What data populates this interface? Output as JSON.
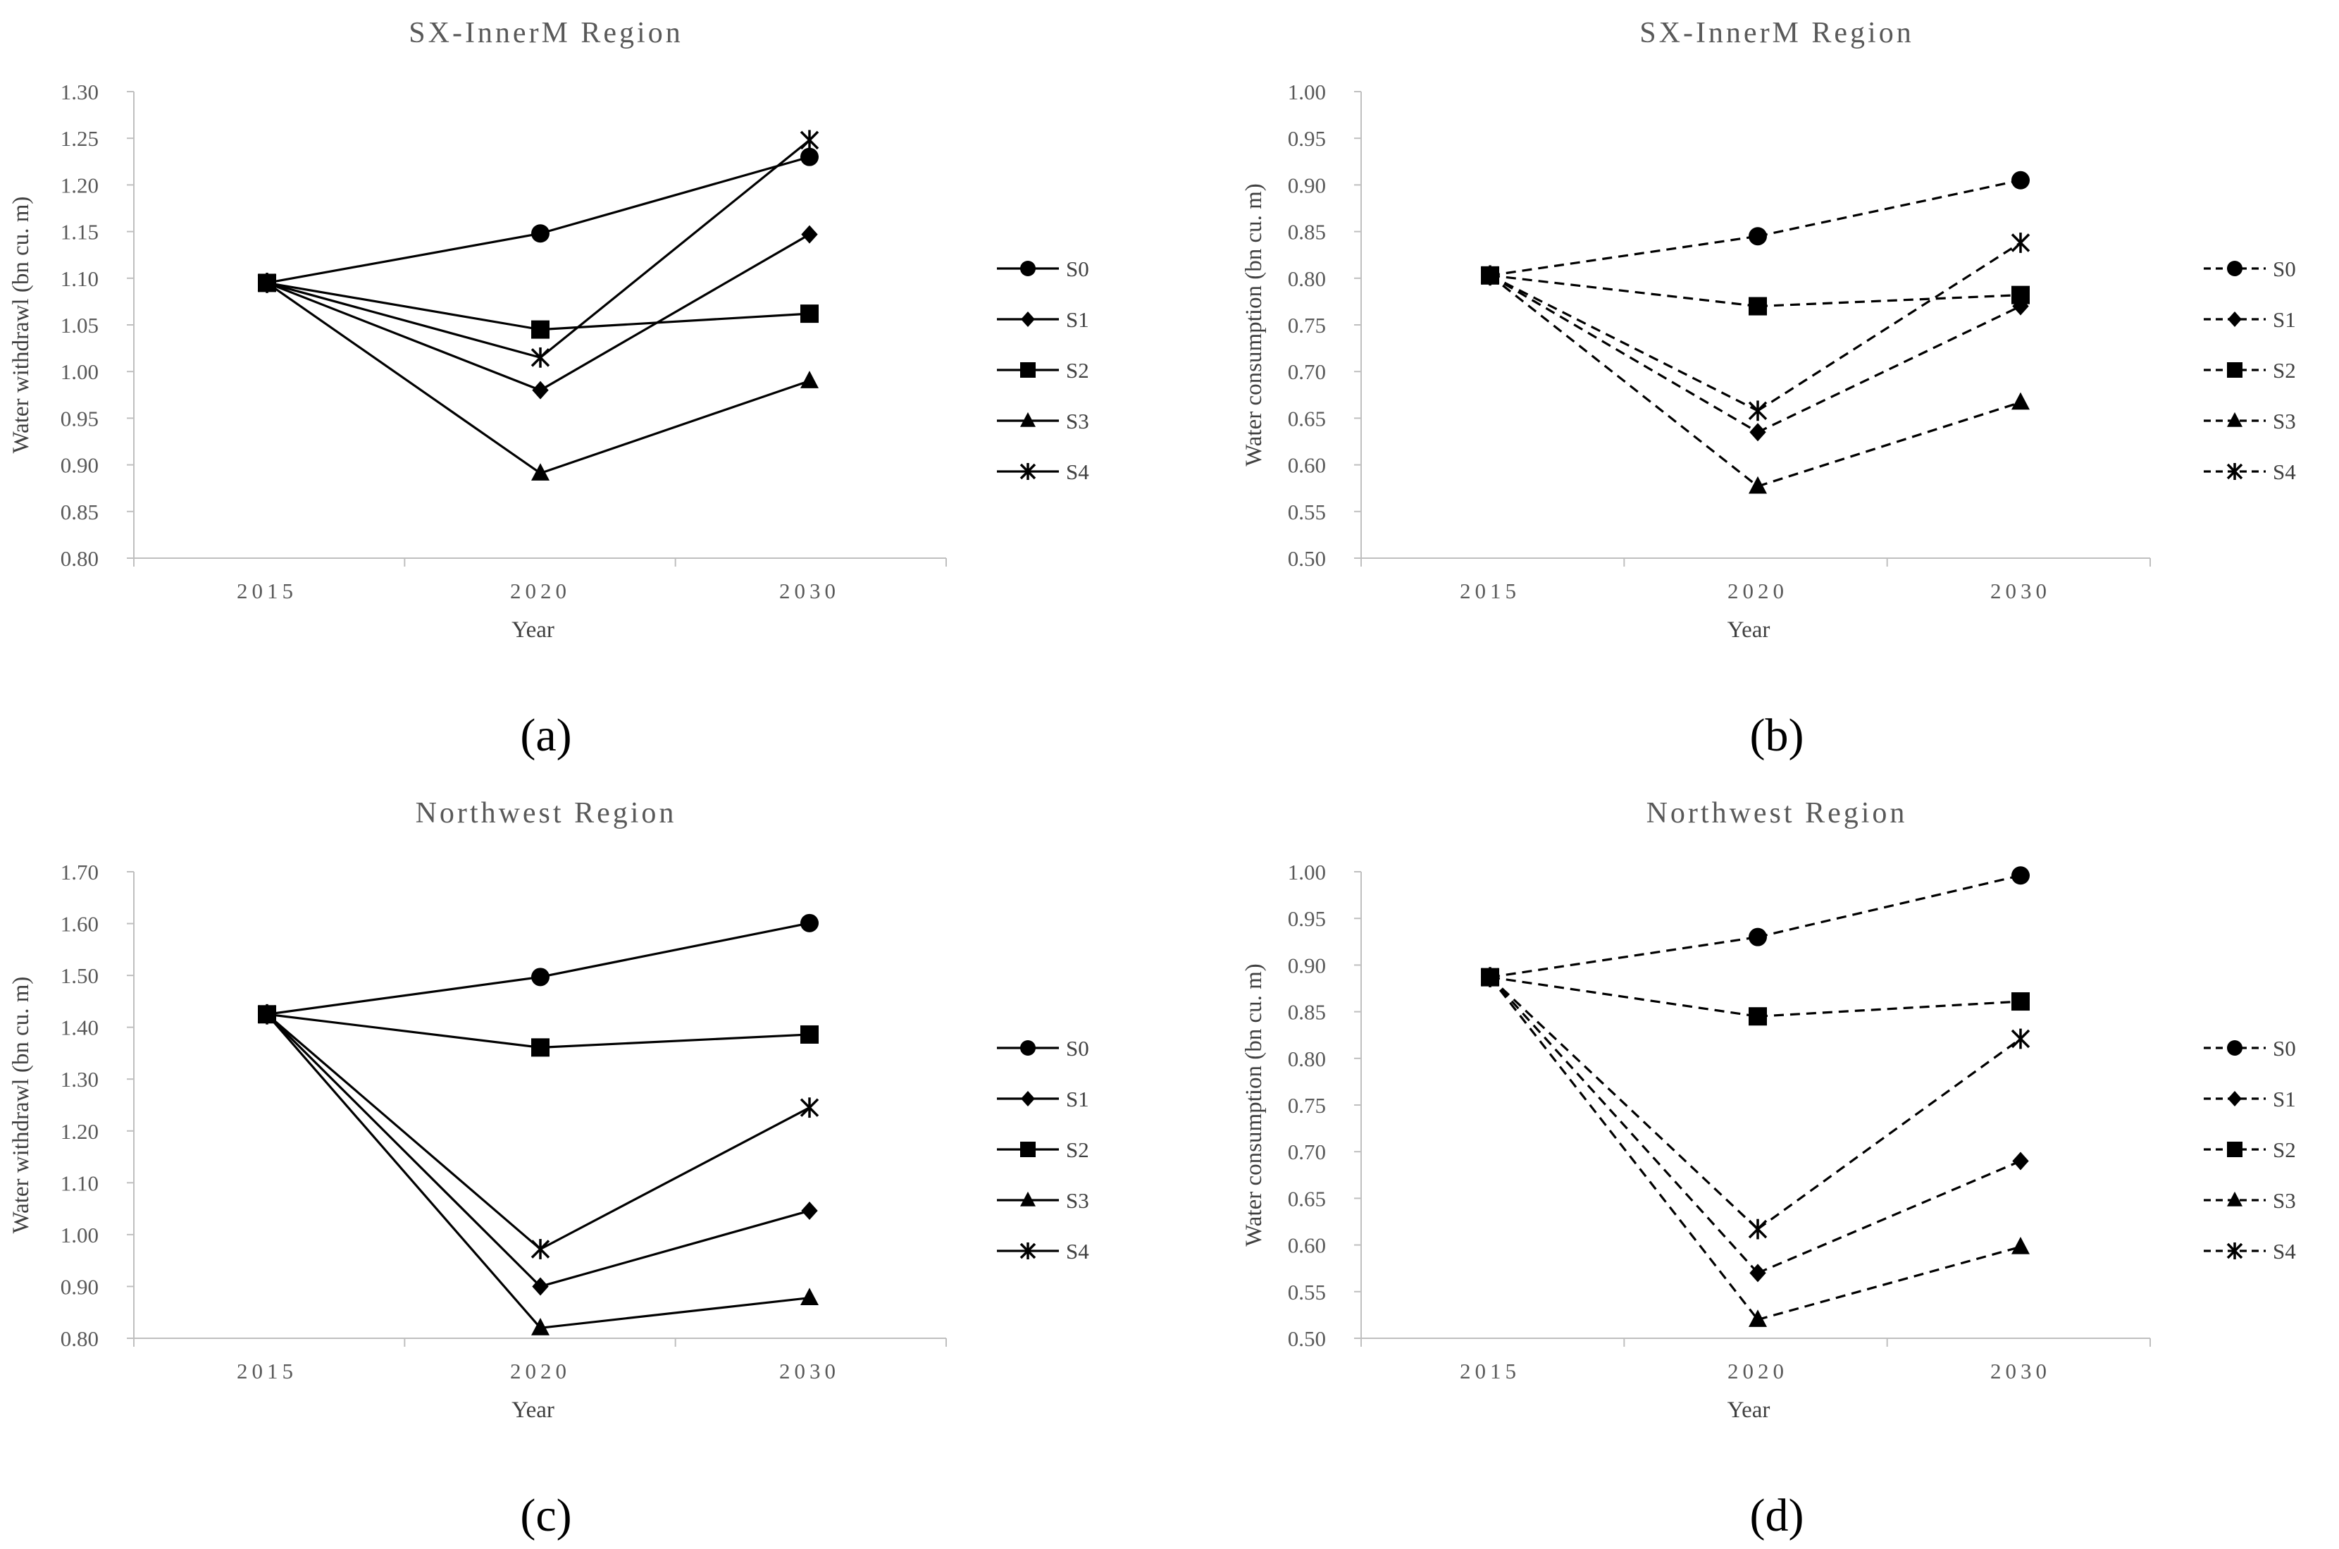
{
  "chart_data": [
    {
      "type": "line",
      "panel_label": "(a)",
      "title": "SX-InnerM Region",
      "xlabel": "Year",
      "ylabel": "Water withdrawl  (bn cu. m)",
      "line_style": "solid",
      "categories": [
        "2015",
        "2020",
        "2030"
      ],
      "ylim": [
        0.8,
        1.3
      ],
      "ystep": 0.05,
      "ytick_labels": [
        "0.80",
        "0.85",
        "0.90",
        "0.95",
        "1.00",
        "1.05",
        "1.10",
        "1.15",
        "1.20",
        "1.25",
        "1.30"
      ],
      "series": [
        {
          "name": "S0",
          "marker": "circle",
          "values": [
            1.095,
            1.148,
            1.23
          ]
        },
        {
          "name": "S1",
          "marker": "diamond",
          "values": [
            1.095,
            0.98,
            1.147
          ]
        },
        {
          "name": "S2",
          "marker": "square",
          "values": [
            1.095,
            1.045,
            1.062
          ]
        },
        {
          "name": "S3",
          "marker": "triangle",
          "values": [
            1.095,
            0.891,
            0.99
          ]
        },
        {
          "name": "S4",
          "marker": "star",
          "values": [
            1.095,
            1.015,
            1.248
          ]
        }
      ]
    },
    {
      "type": "line",
      "panel_label": "(b)",
      "title": "SX-InnerM Region",
      "xlabel": "Year",
      "ylabel": "Water consumption (bn cu. m)",
      "line_style": "dashed",
      "categories": [
        "2015",
        "2020",
        "2030"
      ],
      "ylim": [
        0.5,
        1.0
      ],
      "ystep": 0.05,
      "ytick_labels": [
        "0.50",
        "0.55",
        "0.60",
        "0.65",
        "0.70",
        "0.75",
        "0.80",
        "0.85",
        "0.90",
        "0.95",
        "1.00"
      ],
      "series": [
        {
          "name": "S0",
          "marker": "circle",
          "values": [
            0.803,
            0.845,
            0.905
          ]
        },
        {
          "name": "S1",
          "marker": "diamond",
          "values": [
            0.803,
            0.635,
            0.77
          ]
        },
        {
          "name": "S2",
          "marker": "square",
          "values": [
            0.803,
            0.77,
            0.782
          ]
        },
        {
          "name": "S3",
          "marker": "triangle",
          "values": [
            0.803,
            0.577,
            0.667
          ]
        },
        {
          "name": "S4",
          "marker": "star",
          "values": [
            0.803,
            0.658,
            0.838
          ]
        }
      ]
    },
    {
      "type": "line",
      "panel_label": "(c)",
      "title": "Northwest Region",
      "xlabel": "Year",
      "ylabel": "Water withdrawl  (bn cu. m)",
      "line_style": "solid",
      "categories": [
        "2015",
        "2020",
        "2030"
      ],
      "ylim": [
        0.8,
        1.7
      ],
      "ystep": 0.1,
      "ytick_labels": [
        "0.80",
        "0.90",
        "1.00",
        "1.10",
        "1.20",
        "1.30",
        "1.40",
        "1.50",
        "1.60",
        "1.70"
      ],
      "series": [
        {
          "name": "S0",
          "marker": "circle",
          "values": [
            1.425,
            1.497,
            1.601
          ]
        },
        {
          "name": "S1",
          "marker": "diamond",
          "values": [
            1.425,
            0.9,
            1.046
          ]
        },
        {
          "name": "S2",
          "marker": "square",
          "values": [
            1.425,
            1.361,
            1.386
          ]
        },
        {
          "name": "S3",
          "marker": "triangle",
          "values": [
            1.425,
            0.82,
            0.878
          ]
        },
        {
          "name": "S4",
          "marker": "star",
          "values": [
            1.425,
            0.972,
            1.245
          ]
        }
      ]
    },
    {
      "type": "line",
      "panel_label": "(d)",
      "title": "Northwest Region",
      "xlabel": "Year",
      "ylabel": "Water consumption (bn cu. m)",
      "line_style": "dashed",
      "categories": [
        "2015",
        "2020",
        "2030"
      ],
      "ylim": [
        0.5,
        1.0
      ],
      "ystep": 0.05,
      "ytick_labels": [
        "0.50",
        "0.55",
        "0.60",
        "0.65",
        "0.70",
        "0.75",
        "0.80",
        "0.85",
        "0.90",
        "0.95",
        "1.00"
      ],
      "series": [
        {
          "name": "S0",
          "marker": "circle",
          "values": [
            0.887,
            0.93,
            0.996
          ]
        },
        {
          "name": "S1",
          "marker": "diamond",
          "values": [
            0.887,
            0.57,
            0.69
          ]
        },
        {
          "name": "S2",
          "marker": "square",
          "values": [
            0.887,
            0.845,
            0.861
          ]
        },
        {
          "name": "S3",
          "marker": "triangle",
          "values": [
            0.887,
            0.52,
            0.598
          ]
        },
        {
          "name": "S4",
          "marker": "star",
          "values": [
            0.887,
            0.617,
            0.821
          ]
        }
      ]
    }
  ]
}
